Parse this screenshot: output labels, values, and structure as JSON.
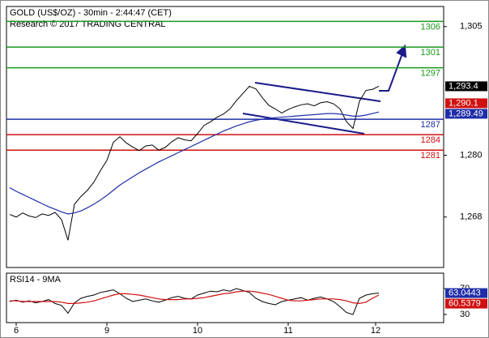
{
  "chart_data": [
    {
      "type": "line",
      "title": "GOLD (US$/OZ) - 30min - 2:44:47 (CET)",
      "subtitle": "Research © 2017 TRADING CENTRAL",
      "x": [
        0,
        1,
        2,
        3,
        4,
        5,
        6,
        7,
        8,
        9,
        10,
        11,
        12,
        13,
        14,
        15,
        16,
        17,
        18,
        19,
        20,
        21,
        22,
        23,
        24,
        25,
        26,
        27,
        28,
        29,
        30,
        31,
        32,
        33,
        34,
        35,
        36,
        37,
        38,
        39,
        40,
        41,
        42,
        43,
        44,
        45,
        46,
        47,
        48,
        49,
        50,
        51,
        52,
        53,
        54,
        55,
        56,
        57
      ],
      "xlim": [
        -0.5,
        67
      ],
      "xticks": [
        {
          "value": 1,
          "label": "6"
        },
        {
          "value": 15,
          "label": "9"
        },
        {
          "value": 29,
          "label": "10"
        },
        {
          "value": 43,
          "label": "11"
        },
        {
          "value": 56.5,
          "label": "12"
        }
      ],
      "ylim": [
        1258.2,
        1308.9
      ],
      "yticks": [
        {
          "value": 1305,
          "label": "1,305"
        },
        {
          "value": 1280,
          "label": "1,280"
        },
        {
          "value": 1268,
          "label": "1,268"
        }
      ],
      "series": [
        {
          "color": "#000000",
          "values": [
            1268.5,
            1268.0,
            1268.8,
            1268.2,
            1267.9,
            1268.6,
            1268.3,
            1268.9,
            1267.5,
            1263.5,
            1270.5,
            1272.0,
            1273.2,
            1274.8,
            1277.0,
            1279.0,
            1282.5,
            1283.6,
            1282.4,
            1281.6,
            1280.9,
            1281.8,
            1282.0,
            1281.0,
            1281.5,
            1282.6,
            1283.4,
            1283.0,
            1282.8,
            1284.2,
            1285.8,
            1286.5,
            1287.4,
            1288.0,
            1289.0,
            1290.6,
            1292.0,
            1293.4,
            1292.9,
            1291.2,
            1289.7,
            1289.0,
            1288.2,
            1288.9,
            1289.4,
            1289.8,
            1290.0,
            1289.6,
            1290.2,
            1290.4,
            1290.0,
            1289.0,
            1286.5,
            1285.2,
            1290.5,
            1292.6,
            1292.8,
            1293.4
          ]
        },
        {
          "color": "#1f2ea8",
          "values": [
            1273.7,
            1273.0,
            1272.4,
            1271.8,
            1271.2,
            1270.6,
            1270.0,
            1269.5,
            1269.0,
            1268.6,
            1268.8,
            1269.2,
            1269.8,
            1270.5,
            1271.3,
            1272.2,
            1273.2,
            1274.2,
            1275.0,
            1275.8,
            1276.6,
            1277.3,
            1278.0,
            1278.7,
            1279.3,
            1279.9,
            1280.5,
            1281.1,
            1281.7,
            1282.3,
            1282.9,
            1283.5,
            1284.1,
            1284.7,
            1285.2,
            1285.7,
            1286.1,
            1286.5,
            1286.8,
            1287.0,
            1287.2,
            1287.3,
            1287.4,
            1287.5,
            1287.6,
            1287.7,
            1287.8,
            1287.9,
            1288.0,
            1288.1,
            1288.1,
            1288.0,
            1287.8,
            1287.6,
            1287.6,
            1287.8,
            1288.1,
            1288.4
          ]
        }
      ],
      "levels": [
        {
          "value": 1306,
          "color": "#1a9a1a"
        },
        {
          "value": 1301,
          "color": "#1a9a1a"
        },
        {
          "value": 1297,
          "color": "#1a9a1a"
        },
        {
          "value": 1287,
          "color": "#1f2ea8"
        },
        {
          "value": 1284,
          "color": "#d01010"
        },
        {
          "value": 1281,
          "color": "#d01010"
        }
      ],
      "markers": [
        {
          "value": 1293.4,
          "label": "1,293.4",
          "color": "#000000"
        },
        {
          "value": 1290.1,
          "label": "1,290.1",
          "color": "#d01010"
        },
        {
          "value": 1289.49,
          "label": "1,289.49",
          "color": "#1f2ea8"
        }
      ]
    },
    {
      "type": "line",
      "title": "RSI14 - 9MA",
      "ylim": [
        17.5,
        93.75
      ],
      "yticks": [
        70,
        30
      ],
      "series": [
        {
          "color": "#000000",
          "values": [
            50,
            52,
            49,
            51,
            48,
            50,
            53,
            47,
            44,
            32,
            48,
            55,
            58,
            60,
            64,
            66,
            68,
            62,
            55,
            50,
            52,
            54,
            51,
            49,
            52,
            56,
            58,
            55,
            54,
            60,
            63,
            66,
            65,
            68,
            66,
            70,
            67,
            64,
            55,
            50,
            47,
            45,
            50,
            52,
            54,
            56,
            52,
            55,
            57,
            54,
            50,
            42,
            33,
            30,
            55,
            60,
            62,
            63
          ]
        },
        {
          "color": "#d01010",
          "values": [
            51,
            51,
            50,
            50,
            50,
            50,
            50,
            50,
            49,
            47,
            47,
            48,
            49,
            51,
            54,
            57,
            60,
            62,
            62,
            61,
            60,
            58,
            56,
            54,
            53,
            53,
            53,
            54,
            54,
            55,
            56,
            58,
            60,
            62,
            63,
            65,
            66,
            66,
            65,
            63,
            61,
            58,
            55,
            52,
            51,
            51,
            52,
            53,
            54,
            54,
            54,
            53,
            51,
            48,
            47,
            49,
            55,
            60
          ]
        }
      ],
      "markers": [
        {
          "value": 63.0443,
          "label": "63.0443",
          "color": "#1f2ea8"
        },
        {
          "value": 60.5379,
          "label": "60.5379",
          "color": "#d01010"
        }
      ]
    }
  ]
}
